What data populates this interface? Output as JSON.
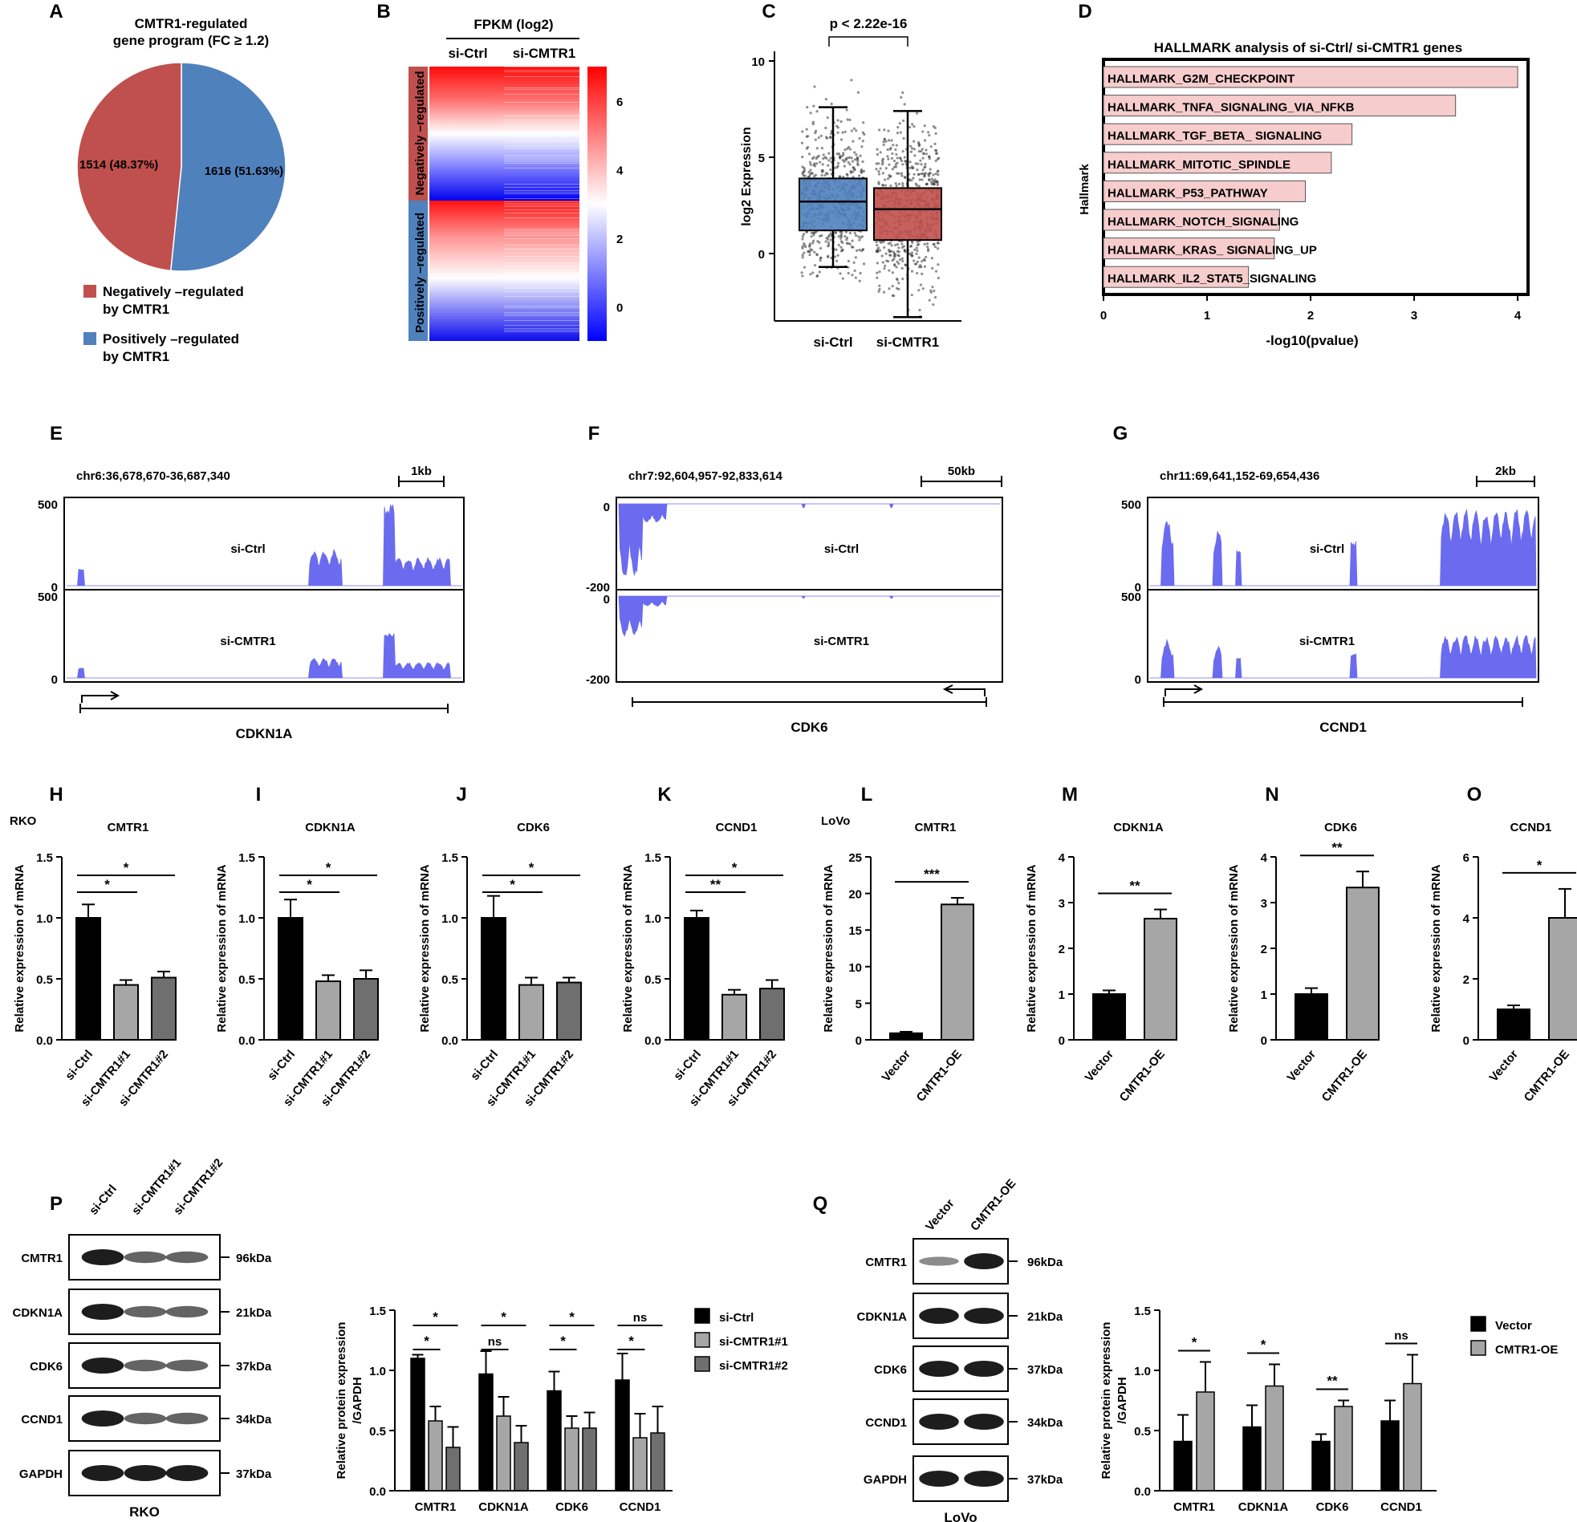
{
  "colors": {
    "red": "#c0504d",
    "blue": "#4f81bd",
    "trace": "#6b6bf0",
    "pinkbar": "#f6cccc",
    "gray_light": "#a6a6a6",
    "gray_dark": "#6f6f6f"
  },
  "panel_labels": [
    "A",
    "B",
    "C",
    "D",
    "E",
    "F",
    "G",
    "H",
    "I",
    "J",
    "K",
    "L",
    "M",
    "N",
    "O",
    "P",
    "Q"
  ],
  "chart_data": [
    {
      "id": "A",
      "type": "pie",
      "title": "CMTR1-regulated\ngene program (FC ≥ 1.2)",
      "slices": [
        {
          "label": "Negatively –regulated by CMTR1",
          "value": 1514,
          "text": "1514 (48.37%)",
          "color": "#c0504d"
        },
        {
          "label": "Positively –regulated by CMTR1",
          "value": 1616,
          "text": "1616 (51.63%)",
          "color": "#4f81bd"
        }
      ],
      "legend": [
        "Negatively –regulated\nby CMTR1",
        "Positively –regulated\nby CMTR1"
      ]
    },
    {
      "id": "B",
      "type": "heatmap",
      "title": "FPKM (log2)",
      "columns": [
        "si-Ctrl",
        "si-CMTR1"
      ],
      "row_groups": [
        "Negatively –regulated",
        "Positively –regulated"
      ],
      "colorbar": {
        "ticks": [
          6,
          4,
          2,
          0
        ],
        "range": [
          -1,
          7
        ]
      }
    },
    {
      "id": "C",
      "type": "box",
      "annotation": "p < 2.22e-16",
      "ylabel": "log2 Expression",
      "categories": [
        "si-Ctrl",
        "si-CMTR1"
      ],
      "ylim": [
        -3.5,
        10.5
      ],
      "yticks": [
        0,
        5,
        10
      ],
      "boxes": [
        {
          "name": "si-Ctrl",
          "min": -0.7,
          "q1": 1.2,
          "median": 2.7,
          "q3": 3.9,
          "max": 7.6,
          "color": "#4f81bd"
        },
        {
          "name": "si-CMTR1",
          "min": -3.3,
          "q1": 0.7,
          "median": 2.3,
          "q3": 3.4,
          "max": 7.4,
          "color": "#c0504d"
        }
      ]
    },
    {
      "id": "D",
      "type": "bar",
      "orientation": "horizontal",
      "title": "HALLMARK analysis of si-Ctrl/ si-CMTR1 genes",
      "xlabel": "-log10(pvalue)",
      "ylabel": "Hallmark",
      "xlim": [
        0,
        4.1
      ],
      "xticks": [
        0,
        1,
        2,
        3,
        4
      ],
      "categories": [
        "HALLMARK_G2M_CHECKPOINT",
        "HALLMARK_TNFA_SIGNALING_VIA_NFKB",
        "HALLMARK_TGF_BETA_ SIGNALING",
        "HALLMARK_MITOTIC_SPINDLE",
        "HALLMARK_P53_PATHWAY",
        "HALLMARK_NOTCH_SIGNALING",
        "HALLMARK_KRAS_ SIGNALING_UP",
        "HALLMARK_IL2_STAT5_SIGNALING"
      ],
      "values": [
        4.0,
        3.4,
        2.4,
        2.2,
        1.95,
        1.7,
        1.65,
        1.4
      ]
    },
    {
      "id": "E",
      "type": "coverage",
      "region": "chr6:36,678,670-36,687,340",
      "scale": "1kb",
      "gene": "CDKN1A",
      "tracks": [
        {
          "name": "si-Ctrl",
          "ymax": 500,
          "ymin": 0
        },
        {
          "name": "si-CMTR1",
          "ymax": 500,
          "ymin": 0
        }
      ]
    },
    {
      "id": "F",
      "type": "coverage",
      "region": "chr7:92,604,957-92,833,614",
      "scale": "50kb",
      "gene": "CDK6",
      "tracks": [
        {
          "name": "si-Ctrl",
          "ymax": 0,
          "ymin": -200
        },
        {
          "name": "si-CMTR1",
          "ymax": 0,
          "ymin": -200
        }
      ]
    },
    {
      "id": "G",
      "type": "coverage",
      "region": "chr11:69,641,152-69,654,436",
      "scale": "2kb",
      "gene": "CCND1",
      "tracks": [
        {
          "name": "si-Ctrl",
          "ymax": 500,
          "ymin": 0
        },
        {
          "name": "si-CMTR1",
          "ymax": 500,
          "ymin": 0
        }
      ]
    },
    {
      "id": "H",
      "type": "bar",
      "group_label": "RKO",
      "title": "CMTR1",
      "ylabel": "Relative expression of mRNA",
      "ylim": [
        0,
        1.5
      ],
      "yticks": [
        0.0,
        0.5,
        1.0,
        1.5
      ],
      "categories": [
        "si-Ctrl",
        "si-CMTR1#1",
        "si-CMTR1#2"
      ],
      "values": [
        1.0,
        0.45,
        0.51
      ],
      "errors": [
        0.11,
        0.04,
        0.05
      ],
      "sig": [
        {
          "from": 0,
          "to": 1,
          "label": "*"
        },
        {
          "from": 0,
          "to": 2,
          "label": "*"
        }
      ]
    },
    {
      "id": "I",
      "type": "bar",
      "title": "CDKN1A",
      "ylabel": "Relative expression of mRNA",
      "ylim": [
        0,
        1.5
      ],
      "yticks": [
        0.0,
        0.5,
        1.0,
        1.5
      ],
      "categories": [
        "si-Ctrl",
        "si-CMTR1#1",
        "si-CMTR1#2"
      ],
      "values": [
        1.0,
        0.48,
        0.5
      ],
      "errors": [
        0.15,
        0.05,
        0.07
      ],
      "sig": [
        {
          "from": 0,
          "to": 1,
          "label": "*"
        },
        {
          "from": 0,
          "to": 2,
          "label": "*"
        }
      ]
    },
    {
      "id": "J",
      "type": "bar",
      "title": "CDK6",
      "ylabel": "Relative expression of mRNA",
      "ylim": [
        0,
        1.5
      ],
      "yticks": [
        0.0,
        0.5,
        1.0,
        1.5
      ],
      "categories": [
        "si-Ctrl",
        "si-CMTR1#1",
        "si-CMTR1#2"
      ],
      "values": [
        1.0,
        0.45,
        0.47
      ],
      "errors": [
        0.18,
        0.06,
        0.04
      ],
      "sig": [
        {
          "from": 0,
          "to": 1,
          "label": "*"
        },
        {
          "from": 0,
          "to": 2,
          "label": "*"
        }
      ]
    },
    {
      "id": "K",
      "type": "bar",
      "title": "CCND1",
      "ylabel": "Relative expression of mRNA",
      "ylim": [
        0,
        1.5
      ],
      "yticks": [
        0.0,
        0.5,
        1.0,
        1.5
      ],
      "categories": [
        "si-Ctrl",
        "si-CMTR1#1",
        "si-CMTR1#2"
      ],
      "values": [
        1.0,
        0.37,
        0.42
      ],
      "errors": [
        0.06,
        0.04,
        0.07
      ],
      "sig": [
        {
          "from": 0,
          "to": 1,
          "label": "**"
        },
        {
          "from": 0,
          "to": 2,
          "label": "*"
        }
      ]
    },
    {
      "id": "L",
      "type": "bar",
      "group_label": "LoVo",
      "title": "CMTR1",
      "ylabel": "Relative expression of mRNA",
      "ylim": [
        0,
        25
      ],
      "yticks": [
        0,
        5,
        10,
        15,
        20,
        25
      ],
      "categories": [
        "Vector",
        "CMTR1-OE"
      ],
      "values": [
        0.9,
        18.5
      ],
      "errors": [
        0.2,
        0.9
      ],
      "sig": [
        {
          "from": 0,
          "to": 1,
          "label": "***"
        }
      ]
    },
    {
      "id": "M",
      "type": "bar",
      "title": "CDKN1A",
      "ylabel": "Relative expression of mRNA",
      "ylim": [
        0,
        4
      ],
      "yticks": [
        0,
        1,
        2,
        3,
        4
      ],
      "categories": [
        "Vector",
        "CMTR1-OE"
      ],
      "values": [
        1.0,
        2.65
      ],
      "errors": [
        0.08,
        0.2
      ],
      "sig": [
        {
          "from": 0,
          "to": 1,
          "label": "**"
        }
      ]
    },
    {
      "id": "N",
      "type": "bar",
      "title": "CDK6",
      "ylabel": "Relative expression of mRNA",
      "ylim": [
        0,
        4
      ],
      "yticks": [
        0,
        1,
        2,
        3,
        4
      ],
      "categories": [
        "Vector",
        "CMTR1-OE"
      ],
      "values": [
        1.0,
        3.33
      ],
      "errors": [
        0.13,
        0.35
      ],
      "sig": [
        {
          "from": 0,
          "to": 1,
          "label": "**"
        }
      ]
    },
    {
      "id": "O",
      "type": "bar",
      "title": "CCND1",
      "ylabel": "Relative expression of mRNA",
      "ylim": [
        0,
        6
      ],
      "yticks": [
        0,
        2,
        4,
        6
      ],
      "categories": [
        "Vector",
        "CMTR1-OE"
      ],
      "values": [
        1.0,
        4.0
      ],
      "errors": [
        0.13,
        0.95
      ],
      "sig": [
        {
          "from": 0,
          "to": 1,
          "label": "*"
        }
      ]
    },
    {
      "id": "P_blot",
      "type": "western_blot",
      "cell_line": "RKO",
      "lanes": [
        "si-Ctrl",
        "si-CMTR1#1",
        "si-CMTR1#2"
      ],
      "rows": [
        {
          "protein": "CMTR1",
          "kda": "96kDa"
        },
        {
          "protein": "CDKN1A",
          "kda": "21kDa"
        },
        {
          "protein": "CDK6",
          "kda": "37kDa"
        },
        {
          "protein": "CCND1",
          "kda": "34kDa"
        },
        {
          "protein": "GAPDH",
          "kda": "37kDa"
        }
      ]
    },
    {
      "id": "P_bar",
      "type": "bar",
      "ylabel": "Relative protein expression\n/GAPDH",
      "ylim": [
        0,
        1.5
      ],
      "yticks": [
        0.0,
        0.5,
        1.0,
        1.5
      ],
      "categories": [
        "CMTR1",
        "CDKN1A",
        "CDK6",
        "CCND1"
      ],
      "series": [
        {
          "name": "si-Ctrl",
          "values": [
            1.1,
            0.97,
            0.83,
            0.92
          ],
          "errors": [
            0.03,
            0.19,
            0.16,
            0.22
          ]
        },
        {
          "name": "si-CMTR1#1",
          "values": [
            0.58,
            0.62,
            0.52,
            0.44
          ],
          "errors": [
            0.12,
            0.16,
            0.1,
            0.2
          ]
        },
        {
          "name": "si-CMTR1#2",
          "values": [
            0.36,
            0.4,
            0.52,
            0.48
          ],
          "errors": [
            0.17,
            0.14,
            0.13,
            0.22
          ]
        }
      ],
      "sig": [
        {
          "cat": 0,
          "from": 0,
          "to": 1,
          "label": "*"
        },
        {
          "cat": 0,
          "from": 0,
          "to": 2,
          "label": "*"
        },
        {
          "cat": 1,
          "from": 0,
          "to": 1,
          "label": "ns"
        },
        {
          "cat": 1,
          "from": 0,
          "to": 2,
          "label": "*"
        },
        {
          "cat": 2,
          "from": 0,
          "to": 1,
          "label": "*"
        },
        {
          "cat": 2,
          "from": 0,
          "to": 2,
          "label": "*"
        },
        {
          "cat": 3,
          "from": 0,
          "to": 1,
          "label": "*"
        },
        {
          "cat": 3,
          "from": 0,
          "to": 2,
          "label": "ns"
        }
      ]
    },
    {
      "id": "Q_blot",
      "type": "western_blot",
      "cell_line": "LoVo",
      "lanes": [
        "Vector",
        "CMTR1-OE"
      ],
      "rows": [
        {
          "protein": "CMTR1",
          "kda": "96kDa"
        },
        {
          "protein": "CDKN1A",
          "kda": "21kDa"
        },
        {
          "protein": "CDK6",
          "kda": "37kDa"
        },
        {
          "protein": "CCND1",
          "kda": "34kDa"
        },
        {
          "protein": "GAPDH",
          "kda": "37kDa"
        }
      ]
    },
    {
      "id": "Q_bar",
      "type": "bar",
      "ylabel": "Relative protein expression\n/GAPDH",
      "ylim": [
        0,
        1.5
      ],
      "yticks": [
        0.0,
        0.5,
        1.0,
        1.5
      ],
      "categories": [
        "CMTR1",
        "CDKN1A",
        "CDK6",
        "CCND1"
      ],
      "series": [
        {
          "name": "Vector",
          "values": [
            0.41,
            0.53,
            0.41,
            0.58
          ],
          "errors": [
            0.22,
            0.18,
            0.06,
            0.17
          ]
        },
        {
          "name": "CMTR1-OE",
          "values": [
            0.82,
            0.87,
            0.7,
            0.89
          ],
          "errors": [
            0.25,
            0.18,
            0.05,
            0.24
          ]
        }
      ],
      "sig": [
        {
          "cat": 0,
          "from": 0,
          "to": 1,
          "label": "*"
        },
        {
          "cat": 1,
          "from": 0,
          "to": 1,
          "label": "*"
        },
        {
          "cat": 2,
          "from": 0,
          "to": 1,
          "label": "**"
        },
        {
          "cat": 3,
          "from": 0,
          "to": 1,
          "label": "ns"
        }
      ]
    }
  ]
}
